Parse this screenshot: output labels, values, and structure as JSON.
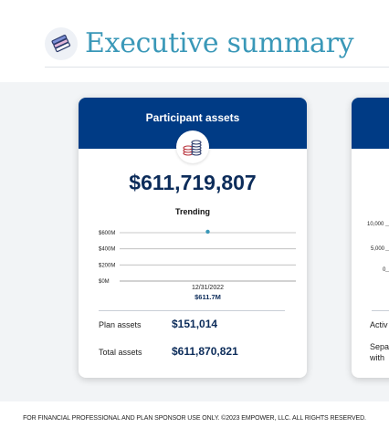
{
  "header": {
    "title": "Executive summary",
    "icon": "books-stack-icon"
  },
  "card_participant_assets": {
    "title": "Participant assets",
    "icon": "coins-stack-icon",
    "total": "$611,719,807",
    "trending_label": "Trending",
    "chart_data": {
      "type": "scatter",
      "title": "Trending",
      "y_tick_labels": [
        "$600M",
        "$400M",
        "$200M",
        "$0M"
      ],
      "y_ticks": [
        600,
        400,
        200,
        0
      ],
      "ylim": [
        0,
        600
      ],
      "x": [
        "12/31/2022"
      ],
      "values": [
        611.7
      ],
      "point_label": "$611.7M",
      "grid": true
    },
    "rows": [
      {
        "label": "Plan assets",
        "value": "$151,014"
      },
      {
        "label": "Total assets",
        "value": "$611,870,821"
      }
    ]
  },
  "card_second": {
    "y_tick_labels": [
      "10,000",
      "5,000",
      "0"
    ],
    "row_label_1": "Activ",
    "row_label_2a": "Sepa",
    "row_label_2b": "with"
  },
  "footer": {
    "text": "FOR FINANCIAL PROFESSIONAL AND PLAN SPONSOR USE ONLY. ©2023 EMPOWER, LLC. ALL RIGHTS RESERVED."
  },
  "colors": {
    "title": "#3a98b8",
    "card_header": "#003b85",
    "value": "#0c2c5a",
    "band": "#f2f4f6",
    "point": "#3a98b8"
  }
}
